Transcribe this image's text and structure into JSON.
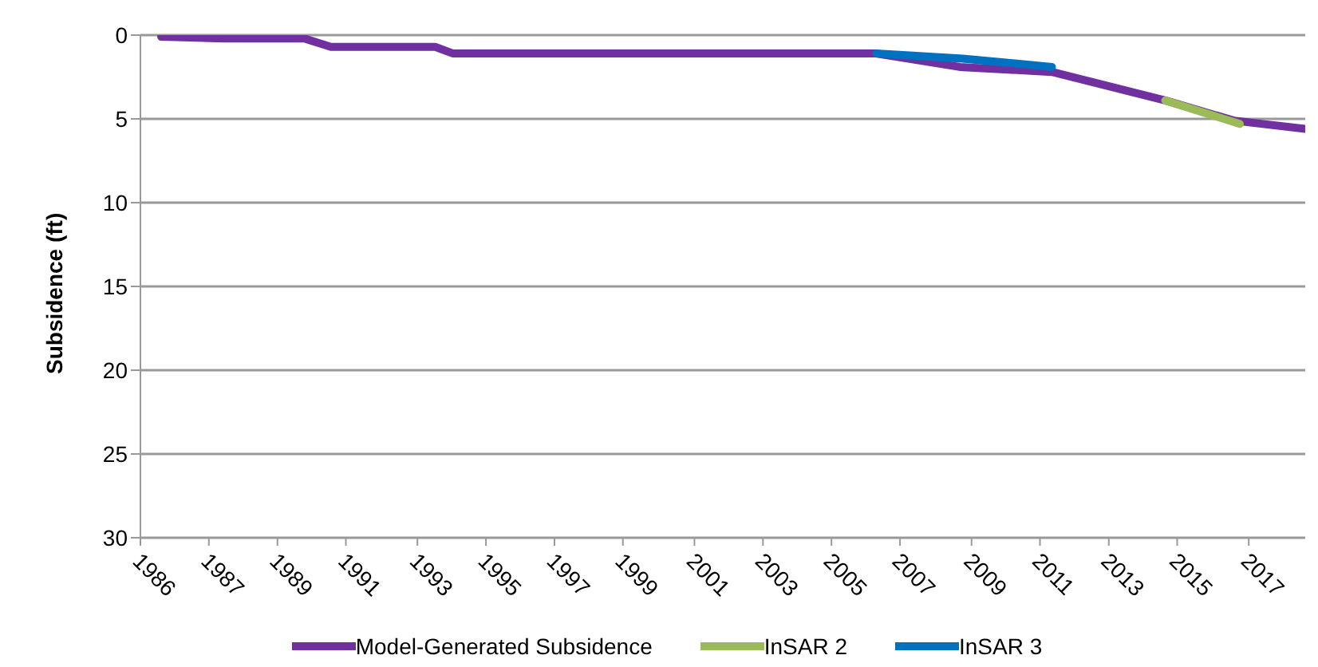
{
  "chart_data": {
    "type": "line",
    "ylabel": "Subsidence (ft)",
    "xlim": [
      "1986-01",
      "2018-08"
    ],
    "xticks": [
      {
        "value": "1986-01",
        "label": "1986"
      },
      {
        "value": "1987-12",
        "label": "1987"
      },
      {
        "value": "1989-11",
        "label": "1989"
      },
      {
        "value": "1991-10",
        "label": "1991"
      },
      {
        "value": "1993-10",
        "label": "1993"
      },
      {
        "value": "1995-09",
        "label": "1995"
      },
      {
        "value": "1997-08",
        "label": "1997"
      },
      {
        "value": "1999-07",
        "label": "1999"
      },
      {
        "value": "2001-07",
        "label": "2001"
      },
      {
        "value": "2003-06",
        "label": "2003"
      },
      {
        "value": "2005-05",
        "label": "2005"
      },
      {
        "value": "2007-04",
        "label": "2007"
      },
      {
        "value": "2009-04",
        "label": "2009"
      },
      {
        "value": "2011-03",
        "label": "2011"
      },
      {
        "value": "2013-02",
        "label": "2013"
      },
      {
        "value": "2015-01",
        "label": "2015"
      },
      {
        "value": "2017-01",
        "label": "2017"
      }
    ],
    "ylim": [
      30,
      0
    ],
    "yticks": [
      0,
      5,
      10,
      15,
      20,
      25,
      30
    ],
    "grid": "y",
    "legend": "bottom",
    "marker": "none",
    "line_style": "solid",
    "series": [
      {
        "name": "Model-Generated Subsidence",
        "color": "#7030a0",
        "x": [
          "1986-08",
          "1988-05",
          "1990-08",
          "1991-05",
          "1994-04",
          "1994-10",
          "1997-10",
          "2006-08",
          "2008-12",
          "2011-07",
          "2014-09",
          "2016-08",
          "2018-08"
        ],
        "values": [
          0.1,
          0.2,
          0.2,
          0.7,
          0.7,
          1.1,
          1.1,
          1.1,
          1.9,
          2.2,
          3.9,
          5.1,
          5.6
        ]
      },
      {
        "name": "InSAR 2",
        "color": "#9bbb59",
        "x": [
          "2014-09",
          "2016-10"
        ],
        "values": [
          3.9,
          5.3
        ]
      },
      {
        "name": "InSAR 3",
        "color": "#0070c0",
        "x": [
          "2006-08",
          "2009-01",
          "2011-07"
        ],
        "values": [
          1.1,
          1.4,
          1.9
        ]
      }
    ]
  }
}
